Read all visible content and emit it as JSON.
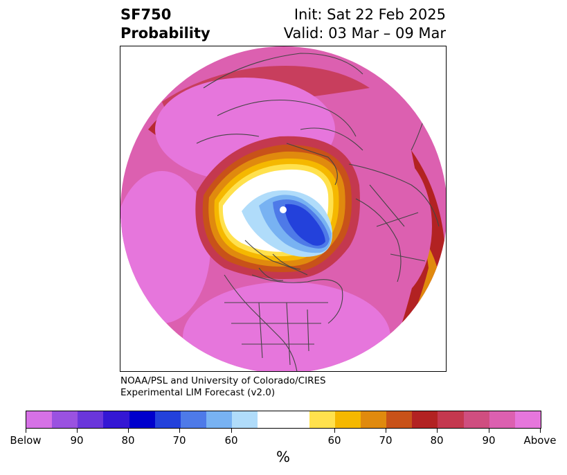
{
  "title": {
    "left_line1": "SF750",
    "left_line2": "Probability",
    "right_line1": "Init: Sat 22 Feb 2025",
    "right_line2": "Valid: 03 Mar – 09 Mar"
  },
  "credit": {
    "line1": "NOAA/PSL and University of Colorado/CIRES",
    "line2": "Experimental LIM Forecast (v2.0)"
  },
  "colorbar": {
    "unit": "%",
    "tick_labels": [
      "Below",
      "90",
      "80",
      "70",
      "60",
      "60",
      "70",
      "80",
      "90",
      "Above"
    ],
    "colors": [
      "#d671e6",
      "#9a52e0",
      "#6a36db",
      "#3417d4",
      "#0000cc",
      "#2341db",
      "#4e7ae8",
      "#78b2f2",
      "#b0dcfa",
      "#ffffff",
      "#ffe14d",
      "#f5b800",
      "#e08a0e",
      "#c85219",
      "#b22222",
      "#c4384f",
      "#cf4e80",
      "#dc60b0",
      "#e676dc"
    ]
  },
  "map": {
    "projection": "north-polar-stereographic",
    "outer_color": "#e676dc",
    "below_center_color": "#2341db",
    "above_center_color": "#dc60b0"
  }
}
